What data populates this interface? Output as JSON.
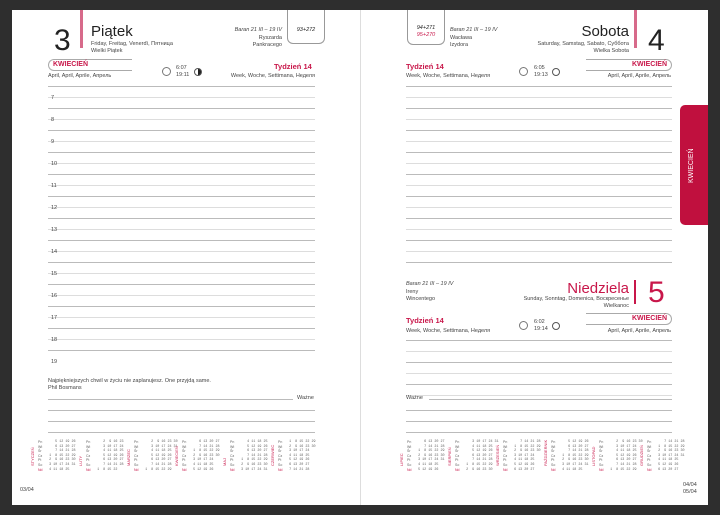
{
  "left": {
    "day_number": "3",
    "day_name": "Piątek",
    "day_translations": "Friday, Freitag, Venerdì, Пятница",
    "holiday": "Wielki Piątek",
    "zodiac": "Baran 21 III – 19 IV",
    "namedays": [
      "Ryszarda",
      "Pankracego"
    ],
    "day_count": "93+272",
    "month": "KWIECIEŃ",
    "month_translations": "April, April, Aprile, Апрель",
    "sunrise": "6:07",
    "sunset": "19:11",
    "moon_phase": "last-quarter",
    "week": "Tydzień 14",
    "week_translations": "Week, Woche, Settimana, Неделя",
    "hours": [
      "7",
      "8",
      "9",
      "10",
      "11",
      "12",
      "13",
      "14",
      "15",
      "16",
      "17",
      "18",
      "19"
    ],
    "quote": "Najpiękniejszych chwil w życiu nie zaplanujesz. One przyjdą same.",
    "quote_author": "Phil Bosmans",
    "important": "Ważne",
    "page_ref": "03/04",
    "calendars": [
      "STYCZEŃ",
      "LUTY",
      "MARZEC",
      "KWIECIEŃ",
      "MAJ",
      "CZERWIEC"
    ]
  },
  "right": {
    "saturday": {
      "day_number": "4",
      "day_name": "Sobota",
      "day_translations": "Saturday, Samstag, Sabato, Суббота",
      "holiday": "Wielka Sobota",
      "zodiac": "Baran 21 III – 19 IV",
      "namedays": [
        "Wacława",
        "Izydora"
      ],
      "day_count": "94+271",
      "day_count_sunday": "95+270",
      "week": "Tydzień 14",
      "week_translations": "Week, Woche, Settimana, Неделя",
      "sunrise": "6:05",
      "sunset": "19:13",
      "month": "KWIECIEŃ",
      "month_translations": "April, April, Aprile, Апрель"
    },
    "sunday": {
      "day_number": "5",
      "day_name": "Niedziela",
      "day_translations": "Sunday, Sonntag, Domenica, Воскресенье",
      "holiday": "Wielkanoc",
      "zodiac": "Baran 21 III – 19 IV",
      "namedays": [
        "Ireny",
        "Wincentego"
      ],
      "week": "Tydzień 14",
      "week_translations": "Week, Woche, Settimana, Неделя",
      "sunrise": "6:02",
      "sunset": "19:14",
      "month": "KWIECIEŃ",
      "month_translations": "April, April, Aprile, Апрель"
    },
    "important": "Ważne",
    "page_ref_top": "04/04",
    "page_ref_bottom": "05/04",
    "calendars": [
      "LIPIEC",
      "SIERPIEŃ",
      "WRZESIEŃ",
      "PAŹDZIERNIK",
      "LISTOPAD",
      "GRUDZIEŃ"
    ],
    "tab": "KWIECIEŃ"
  },
  "weekday_abbr": [
    "Pn",
    "Wt",
    "Śr",
    "Cz",
    "Pt",
    "So",
    "Nd"
  ],
  "colors": {
    "accent": "#c8174a",
    "tab": "#c0103e",
    "background": "#2e2e2e"
  }
}
